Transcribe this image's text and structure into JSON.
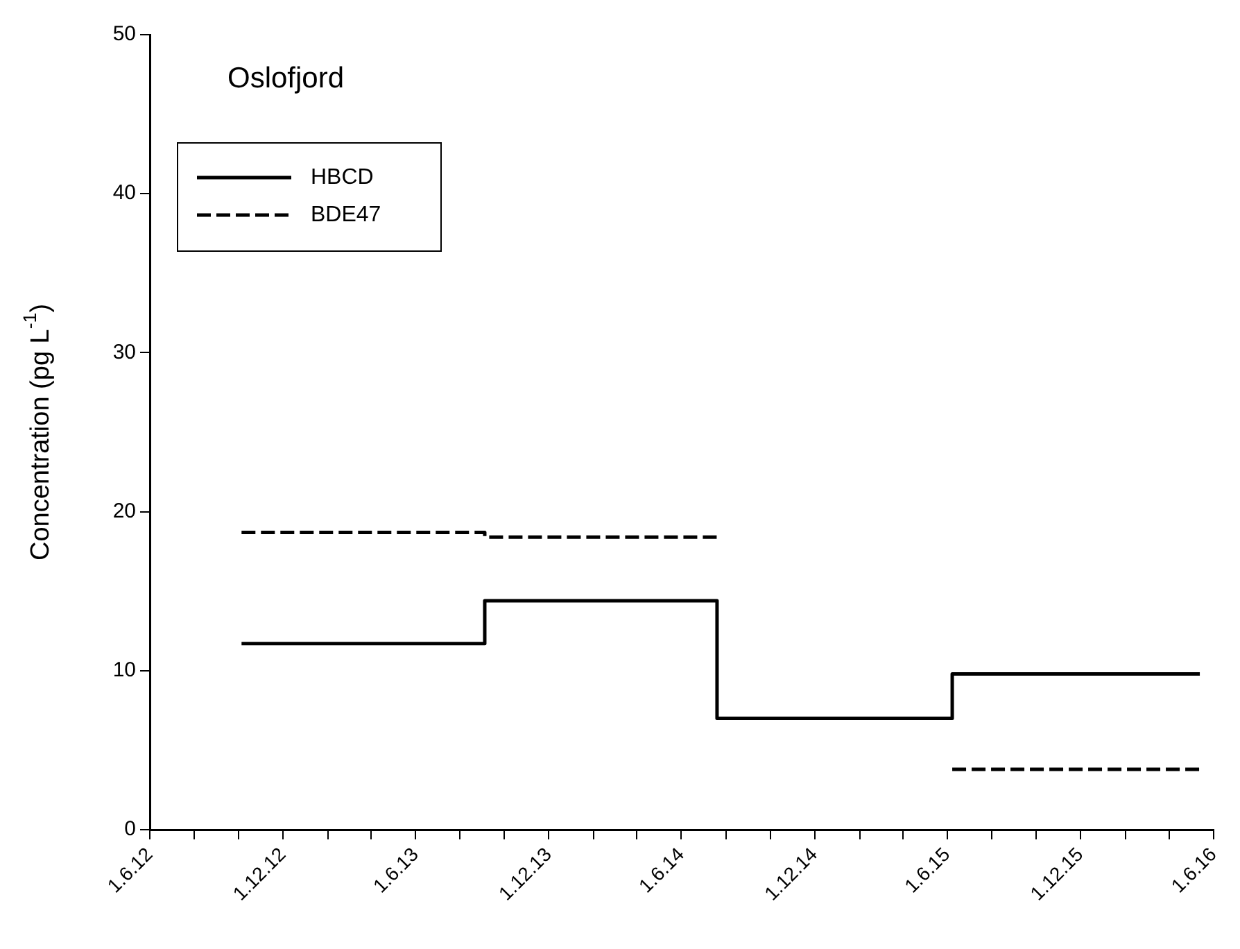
{
  "chart_data": {
    "type": "step",
    "title": "Oslofjord",
    "ylabel": "Concentration (pg L$^{-1}$)",
    "xlim": [
      "2012-06-01",
      "2016-06-01"
    ],
    "xticks": [
      {
        "value": "2012-06-01",
        "label": "1.6.12"
      },
      {
        "value": "2012-08-01",
        "label": null
      },
      {
        "value": "2012-10-01",
        "label": null
      },
      {
        "value": "2012-12-01",
        "label": "1.12.12"
      },
      {
        "value": "2013-02-01",
        "label": null
      },
      {
        "value": "2013-04-01",
        "label": null
      },
      {
        "value": "2013-06-01",
        "label": "1.6.13"
      },
      {
        "value": "2013-08-01",
        "label": null
      },
      {
        "value": "2013-10-01",
        "label": null
      },
      {
        "value": "2013-12-01",
        "label": "1.12.13"
      },
      {
        "value": "2014-02-01",
        "label": null
      },
      {
        "value": "2014-04-01",
        "label": null
      },
      {
        "value": "2014-06-01",
        "label": "1.6.14"
      },
      {
        "value": "2014-08-01",
        "label": null
      },
      {
        "value": "2014-10-01",
        "label": null
      },
      {
        "value": "2014-12-01",
        "label": "1.12.14"
      },
      {
        "value": "2015-02-01",
        "label": null
      },
      {
        "value": "2015-04-01",
        "label": null
      },
      {
        "value": "2015-06-01",
        "label": "1.6.15"
      },
      {
        "value": "2015-08-01",
        "label": null
      },
      {
        "value": "2015-10-01",
        "label": null
      },
      {
        "value": "2015-12-01",
        "label": "1.12.15"
      },
      {
        "value": "2016-02-01",
        "label": null
      },
      {
        "value": "2016-04-01",
        "label": null
      },
      {
        "value": "2016-06-01",
        "label": "1.6.16"
      }
    ],
    "ylim": [
      0,
      50
    ],
    "yticks": [
      0,
      10,
      20,
      30,
      40,
      50
    ],
    "grid": false,
    "legend": "top left",
    "marker": "none",
    "series": [
      {
        "name": "HBCD",
        "color": "#000000",
        "line_style": "solid",
        "x": [
          "2012-10-05",
          "2013-09-04",
          "2014-07-20",
          "2015-06-08",
          "2016-05-13"
        ],
        "values": [
          11.7,
          14.4,
          7.0,
          9.8,
          9.8
        ]
      },
      {
        "name": "BDE47",
        "color": "#000000",
        "line_style": "dashed",
        "x": [
          "2012-10-05",
          "2013-09-04",
          "2014-07-20",
          "2014-12-01",
          "2015-06-08",
          "2016-05-13"
        ],
        "values": [
          18.7,
          18.4,
          18.4,
          null,
          3.8,
          3.8
        ]
      }
    ]
  }
}
